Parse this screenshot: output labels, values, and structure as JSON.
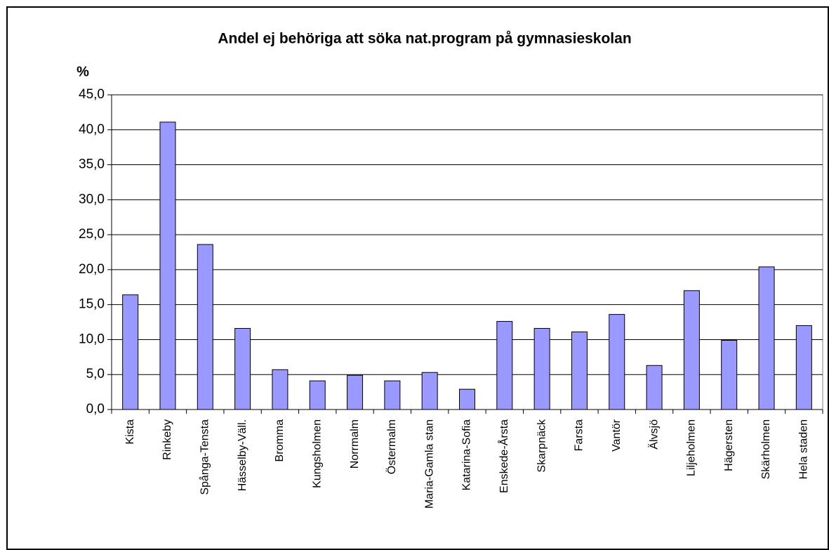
{
  "chart_data": {
    "type": "bar",
    "title": "Andel ej behöriga att söka nat.program på gymnasieskolan",
    "y_label": "%",
    "categories": [
      "Kista",
      "Rinkeby",
      "Spånga-Tensta",
      "Hässelby-Väll.",
      "Bromma",
      "Kungsholmen",
      "Norrmalm",
      "Östermalm",
      "Maria-Gamla stan",
      "Katarina-Sofia",
      "Enskede-Årsta",
      "Skarpnäck",
      "Farsta",
      "Vantör",
      "Älvsjö",
      "Liljeholmen",
      "Hägersten",
      "Skärholmen",
      "Hela staden"
    ],
    "values": [
      16.4,
      41.1,
      23.6,
      11.6,
      5.7,
      4.1,
      4.9,
      4.1,
      5.3,
      2.9,
      12.6,
      11.6,
      11.1,
      13.6,
      6.3,
      17.0,
      9.9,
      20.4,
      12.0
    ],
    "color": "#9999ff",
    "ylim": [
      0,
      45
    ],
    "yticks": [
      {
        "value": 0,
        "label": "0,0"
      },
      {
        "value": 5,
        "label": "5,0"
      },
      {
        "value": 10,
        "label": "10,0"
      },
      {
        "value": 15,
        "label": "15,0"
      },
      {
        "value": 20,
        "label": "20,0"
      },
      {
        "value": 25,
        "label": "25,0"
      },
      {
        "value": 30,
        "label": "30,0"
      },
      {
        "value": 35,
        "label": "35,0"
      },
      {
        "value": 40,
        "label": "40,0"
      },
      {
        "value": 45,
        "label": "45,0"
      }
    ],
    "grid": true
  }
}
